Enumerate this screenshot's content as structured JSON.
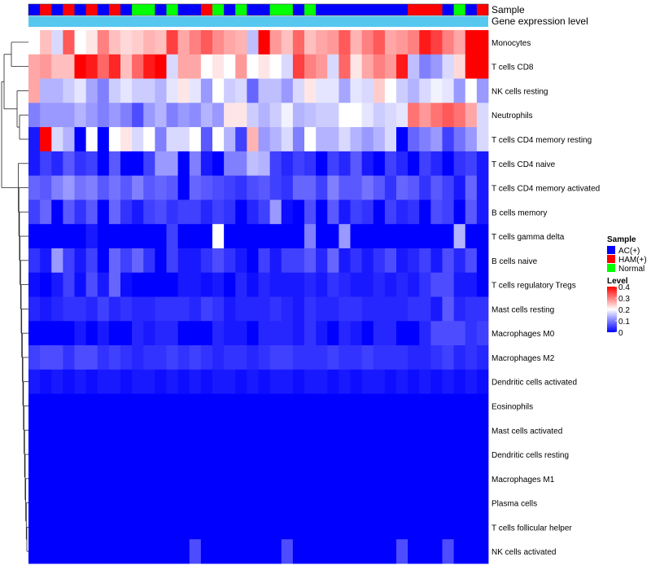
{
  "chart_data": {
    "type": "heatmap",
    "annotation_tracks": [
      {
        "name": "Sample"
      },
      {
        "name": "Gene expression level"
      }
    ],
    "rows": [
      "Monocytes",
      "T cells CD8",
      "NK cells resting",
      "Neutrophils",
      "T cells CD4 memory resting",
      "T cells CD4 naive",
      "T cells CD4 memory activated",
      "B cells memory",
      "T cells gamma delta",
      "B cells naive",
      "T cells regulatory  Tregs",
      "Mast cells resting",
      "Macrophages M0",
      "Macrophages M2",
      "Dendritic cells activated",
      "Eosinophils",
      "Mast cells activated",
      "Dendritic cells resting",
      "Macrophages M1",
      "Plasma cells",
      "T cells follicular helper",
      "NK cells activated"
    ],
    "sample_groups": [
      "AC",
      "HAM",
      "AC",
      "HAM",
      "AC",
      "HAM",
      "AC",
      "HAM",
      "AC",
      "N",
      "N",
      "AC",
      "N",
      "AC",
      "AC",
      "HAM",
      "N",
      "AC",
      "N",
      "AC",
      "AC",
      "N",
      "N",
      "AC",
      "N",
      "AC",
      "AC",
      "AC",
      "AC",
      "AC",
      "AC",
      "AC",
      "AC",
      "HAM",
      "HAM",
      "HAM",
      "AC",
      "N",
      "AC",
      "HAM"
    ],
    "gene_expression_level_color": "#56c8f0",
    "values": [
      [
        0.2,
        0.25,
        0.17,
        0.33,
        0.2,
        0.22,
        0.3,
        0.25,
        0.23,
        0.24,
        0.26,
        0.25,
        0.35,
        0.27,
        0.3,
        0.33,
        0.29,
        0.27,
        0.26,
        0.15,
        0.4,
        0.28,
        0.25,
        0.32,
        0.25,
        0.27,
        0.28,
        0.33,
        0.26,
        0.3,
        0.33,
        0.27,
        0.28,
        0.3,
        0.38,
        0.35,
        0.3,
        0.27,
        0.4,
        0.4
      ],
      [
        0.27,
        0.28,
        0.25,
        0.25,
        0.4,
        0.38,
        0.32,
        0.37,
        0.25,
        0.32,
        0.38,
        0.4,
        0.17,
        0.27,
        0.27,
        0.2,
        0.22,
        0.2,
        0.28,
        0.2,
        0.22,
        0.2,
        0.17,
        0.35,
        0.3,
        0.28,
        0.17,
        0.32,
        0.22,
        0.27,
        0.3,
        0.28,
        0.38,
        0.15,
        0.1,
        0.12,
        0.17,
        0.23,
        0.4,
        0.4
      ],
      [
        0.27,
        0.14,
        0.14,
        0.16,
        0.18,
        0.13,
        0.1,
        0.16,
        0.18,
        0.16,
        0.16,
        0.14,
        0.18,
        0.22,
        0.18,
        0.12,
        0.2,
        0.16,
        0.17,
        0.08,
        0.15,
        0.15,
        0.12,
        0.17,
        0.22,
        0.18,
        0.18,
        0.13,
        0.18,
        0.17,
        0.24,
        0.2,
        0.16,
        0.14,
        0.17,
        0.19,
        0.18,
        0.12,
        0.2,
        0.12
      ],
      [
        0.1,
        0.12,
        0.12,
        0.12,
        0.14,
        0.12,
        0.1,
        0.12,
        0.1,
        0.06,
        0.12,
        0.14,
        0.1,
        0.12,
        0.11,
        0.14,
        0.12,
        0.22,
        0.22,
        0.16,
        0.14,
        0.16,
        0.19,
        0.14,
        0.15,
        0.16,
        0.16,
        0.2,
        0.2,
        0.18,
        0.16,
        0.17,
        0.18,
        0.31,
        0.28,
        0.31,
        0.33,
        0.31,
        0.27,
        0.17
      ],
      [
        0.02,
        0.4,
        0.17,
        0.14,
        0.0,
        0.2,
        0.0,
        0.2,
        0.22,
        0.17,
        0.2,
        0.1,
        0.17,
        0.17,
        0.2,
        0.07,
        0.2,
        0.14,
        0.05,
        0.26,
        0.12,
        0.14,
        0.17,
        0.1,
        0.2,
        0.14,
        0.14,
        0.17,
        0.14,
        0.12,
        0.14,
        0.17,
        0.0,
        0.08,
        0.1,
        0.12,
        0.05,
        0.09,
        0.12,
        0.17
      ],
      [
        0.02,
        0.05,
        0.03,
        0.07,
        0.04,
        0.05,
        0.0,
        0.07,
        0.0,
        0.0,
        0.05,
        0.12,
        0.12,
        0.0,
        0.1,
        0.02,
        0.0,
        0.1,
        0.1,
        0.15,
        0.14,
        0.05,
        0.03,
        0.05,
        0.04,
        0.0,
        0.05,
        0.03,
        0.07,
        0.02,
        0.0,
        0.05,
        0.03,
        0.0,
        0.05,
        0.03,
        0.0,
        0.04,
        0.05,
        0.02
      ],
      [
        0.08,
        0.07,
        0.1,
        0.12,
        0.09,
        0.1,
        0.07,
        0.09,
        0.07,
        0.1,
        0.07,
        0.08,
        0.07,
        0.0,
        0.08,
        0.07,
        0.06,
        0.05,
        0.04,
        0.06,
        0.07,
        0.05,
        0.04,
        0.08,
        0.08,
        0.05,
        0.1,
        0.07,
        0.07,
        0.09,
        0.07,
        0.04,
        0.08,
        0.07,
        0.04,
        0.07,
        0.05,
        0.02,
        0.08,
        0.02
      ],
      [
        0.05,
        0.08,
        0.0,
        0.07,
        0.04,
        0.07,
        0.0,
        0.08,
        0.04,
        0.02,
        0.05,
        0.06,
        0.04,
        0.05,
        0.05,
        0.03,
        0.05,
        0.04,
        0.0,
        0.03,
        0.05,
        0.12,
        0.01,
        0.0,
        0.06,
        0.0,
        0.07,
        0.02,
        0.05,
        0.04,
        0.0,
        0.05,
        0.03,
        0.04,
        0.0,
        0.06,
        0.05,
        0.0,
        0.07,
        0.02
      ],
      [
        0.0,
        0.0,
        0.0,
        0.0,
        0.0,
        0.02,
        0.0,
        0.0,
        0.0,
        0.0,
        0.0,
        0.0,
        0.05,
        0.0,
        0.0,
        0.0,
        0.2,
        0.0,
        0.0,
        0.0,
        0.0,
        0.0,
        0.0,
        0.0,
        0.1,
        0.0,
        0.0,
        0.12,
        0.0,
        0.0,
        0.0,
        0.0,
        0.0,
        0.0,
        0.0,
        0.0,
        0.0,
        0.14,
        0.0,
        0.0
      ],
      [
        0.04,
        0.02,
        0.12,
        0.05,
        0.02,
        0.05,
        0.0,
        0.08,
        0.05,
        0.08,
        0.04,
        0.0,
        0.05,
        0.02,
        0.02,
        0.04,
        0.06,
        0.04,
        0.02,
        0.0,
        0.05,
        0.02,
        0.05,
        0.05,
        0.07,
        0.03,
        0.08,
        0.02,
        0.04,
        0.02,
        0.04,
        0.06,
        0.02,
        0.03,
        0.05,
        0.02,
        0.06,
        0.03,
        0.06,
        0.0
      ],
      [
        0.01,
        0.0,
        0.02,
        0.05,
        0.01,
        0.06,
        0.02,
        0.08,
        0.01,
        0.0,
        0.0,
        0.0,
        0.0,
        0.02,
        0.02,
        0.01,
        0.02,
        0.0,
        0.03,
        0.01,
        0.03,
        0.02,
        0.02,
        0.02,
        0.03,
        0.02,
        0.04,
        0.03,
        0.02,
        0.02,
        0.03,
        0.02,
        0.03,
        0.02,
        0.04,
        0.06,
        0.06,
        0.02,
        0.02,
        0.0
      ],
      [
        0.03,
        0.02,
        0.03,
        0.04,
        0.04,
        0.03,
        0.05,
        0.03,
        0.04,
        0.03,
        0.03,
        0.04,
        0.04,
        0.04,
        0.03,
        0.05,
        0.04,
        0.02,
        0.03,
        0.03,
        0.03,
        0.04,
        0.03,
        0.02,
        0.04,
        0.03,
        0.03,
        0.04,
        0.04,
        0.03,
        0.03,
        0.03,
        0.03,
        0.04,
        0.04,
        0.02,
        0.07,
        0.03,
        0.04,
        0.04
      ],
      [
        0.0,
        0.0,
        0.0,
        0.0,
        0.02,
        0.0,
        0.02,
        0.0,
        0.0,
        0.03,
        0.02,
        0.03,
        0.03,
        0.0,
        0.0,
        0.0,
        0.03,
        0.02,
        0.02,
        0.0,
        0.03,
        0.03,
        0.03,
        0.02,
        0.04,
        0.02,
        0.0,
        0.03,
        0.02,
        0.0,
        0.03,
        0.03,
        0.0,
        0.0,
        0.03,
        0.06,
        0.06,
        0.06,
        0.04,
        0.05
      ],
      [
        0.05,
        0.06,
        0.06,
        0.04,
        0.06,
        0.06,
        0.04,
        0.05,
        0.04,
        0.03,
        0.04,
        0.04,
        0.05,
        0.04,
        0.05,
        0.04,
        0.03,
        0.04,
        0.04,
        0.03,
        0.04,
        0.05,
        0.05,
        0.04,
        0.04,
        0.04,
        0.05,
        0.04,
        0.04,
        0.05,
        0.04,
        0.04,
        0.04,
        0.03,
        0.03,
        0.04,
        0.05,
        0.03,
        0.04,
        0.03
      ],
      [
        0.02,
        0.01,
        0.02,
        0.01,
        0.02,
        0.01,
        0.02,
        0.02,
        0.01,
        0.02,
        0.02,
        0.01,
        0.02,
        0.01,
        0.02,
        0.01,
        0.02,
        0.02,
        0.01,
        0.02,
        0.01,
        0.02,
        0.02,
        0.01,
        0.02,
        0.02,
        0.01,
        0.02,
        0.01,
        0.02,
        0.02,
        0.01,
        0.02,
        0.01,
        0.02,
        0.01,
        0.02,
        0.01,
        0.02,
        0.01
      ],
      [
        0.0,
        0.0,
        0.0,
        0.0,
        0.0,
        0.0,
        0.0,
        0.0,
        0.0,
        0.0,
        0.0,
        0.0,
        0.0,
        0.0,
        0.0,
        0.0,
        0.0,
        0.0,
        0.0,
        0.0,
        0.0,
        0.0,
        0.0,
        0.0,
        0.0,
        0.0,
        0.0,
        0.0,
        0.0,
        0.0,
        0.0,
        0.0,
        0.0,
        0.0,
        0.0,
        0.0,
        0.0,
        0.0,
        0.0,
        0.0
      ],
      [
        0.0,
        0.0,
        0.0,
        0.0,
        0.0,
        0.0,
        0.0,
        0.0,
        0.0,
        0.0,
        0.0,
        0.0,
        0.0,
        0.0,
        0.0,
        0.0,
        0.0,
        0.0,
        0.0,
        0.0,
        0.0,
        0.0,
        0.0,
        0.0,
        0.0,
        0.0,
        0.0,
        0.0,
        0.0,
        0.0,
        0.0,
        0.0,
        0.0,
        0.0,
        0.0,
        0.0,
        0.0,
        0.0,
        0.0,
        0.0
      ],
      [
        0.0,
        0.0,
        0.0,
        0.0,
        0.0,
        0.0,
        0.0,
        0.0,
        0.0,
        0.0,
        0.0,
        0.0,
        0.0,
        0.0,
        0.0,
        0.0,
        0.0,
        0.0,
        0.0,
        0.0,
        0.0,
        0.0,
        0.0,
        0.0,
        0.0,
        0.0,
        0.0,
        0.0,
        0.0,
        0.0,
        0.0,
        0.0,
        0.0,
        0.0,
        0.0,
        0.0,
        0.0,
        0.0,
        0.0,
        0.0
      ],
      [
        0.0,
        0.0,
        0.0,
        0.0,
        0.0,
        0.0,
        0.0,
        0.0,
        0.0,
        0.0,
        0.0,
        0.0,
        0.0,
        0.0,
        0.0,
        0.0,
        0.0,
        0.0,
        0.0,
        0.0,
        0.0,
        0.0,
        0.0,
        0.0,
        0.0,
        0.0,
        0.0,
        0.0,
        0.0,
        0.0,
        0.0,
        0.0,
        0.0,
        0.0,
        0.0,
        0.0,
        0.0,
        0.0,
        0.0,
        0.0
      ],
      [
        0.0,
        0.0,
        0.0,
        0.0,
        0.0,
        0.0,
        0.0,
        0.0,
        0.0,
        0.0,
        0.0,
        0.0,
        0.0,
        0.0,
        0.0,
        0.0,
        0.0,
        0.0,
        0.0,
        0.0,
        0.0,
        0.0,
        0.0,
        0.0,
        0.0,
        0.0,
        0.0,
        0.0,
        0.0,
        0.0,
        0.0,
        0.0,
        0.0,
        0.0,
        0.0,
        0.0,
        0.0,
        0.0,
        0.0,
        0.0
      ],
      [
        0.0,
        0.0,
        0.0,
        0.0,
        0.0,
        0.0,
        0.0,
        0.0,
        0.0,
        0.0,
        0.0,
        0.0,
        0.0,
        0.0,
        0.0,
        0.0,
        0.0,
        0.0,
        0.0,
        0.0,
        0.0,
        0.0,
        0.0,
        0.0,
        0.0,
        0.0,
        0.0,
        0.0,
        0.0,
        0.0,
        0.0,
        0.0,
        0.0,
        0.0,
        0.0,
        0.0,
        0.0,
        0.0,
        0.0,
        0.0
      ],
      [
        0.0,
        0.0,
        0.0,
        0.0,
        0.0,
        0.0,
        0.0,
        0.0,
        0.0,
        0.0,
        0.0,
        0.0,
        0.0,
        0.0,
        0.06,
        0.0,
        0.0,
        0.0,
        0.0,
        0.0,
        0.0,
        0.0,
        0.06,
        0.0,
        0.0,
        0.0,
        0.0,
        0.0,
        0.0,
        0.0,
        0.0,
        0.0,
        0.06,
        0.0,
        0.0,
        0.0,
        0.06,
        0.0,
        0.0,
        0.0
      ]
    ],
    "legends": {
      "sample": {
        "title": "Sample",
        "entries": [
          {
            "key": "AC",
            "label": "AC(+)",
            "color": "#0000ff"
          },
          {
            "key": "HAM",
            "label": "HAM(+)",
            "color": "#ff0000"
          },
          {
            "key": "N",
            "label": "Normal",
            "color": "#00ff00"
          }
        ]
      },
      "level": {
        "title": "Level",
        "ticks": [
          "0.4",
          "0.3",
          "0.2",
          "0.1",
          "0"
        ],
        "range": [
          0,
          0.4
        ],
        "colors": {
          "low": "#0000ff",
          "mid": "#ffffff",
          "high": "#ff0000"
        }
      }
    }
  }
}
